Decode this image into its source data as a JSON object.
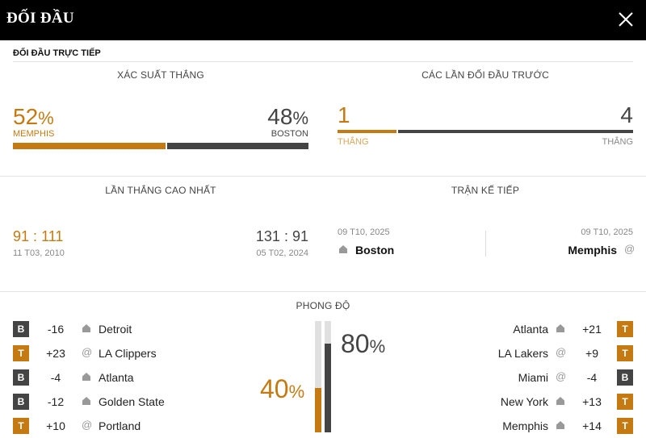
{
  "header": {
    "title": "ĐỐI ĐẦU",
    "close_icon": "close-icon"
  },
  "section": {
    "title": "ĐỐI ĐẦU TRỰC TIẾP"
  },
  "win_probability": {
    "heading": "XÁC SUẤT THẮNG",
    "left": {
      "value": "52",
      "pct": "%",
      "team": "MEMPHIS",
      "fraction": 0.52
    },
    "right": {
      "value": "48",
      "pct": "%",
      "team": "BOSTON",
      "fraction": 0.48
    }
  },
  "previous_meetings": {
    "heading": "CÁC LẦN ĐỐI ĐẦU TRƯỚC",
    "left": {
      "value": "1",
      "label": "THẮNG",
      "count": 1
    },
    "right": {
      "value": "4",
      "label": "THẮNG",
      "count": 4
    }
  },
  "biggest_win": {
    "heading": "LẦN THẮNG CAO NHẤT",
    "left": {
      "home": "91",
      "sep": ":",
      "away": "111",
      "date": "11 T03, 2010"
    },
    "right": {
      "home": "131",
      "sep": ":",
      "away": "91",
      "date": "05 T02, 2024"
    }
  },
  "next_match": {
    "heading": "TRẬN KẾ TIẾP",
    "left": {
      "date": "09 T10, 2025",
      "team": "Boston",
      "venue_icon": "home-icon"
    },
    "right": {
      "date": "09 T10, 2025",
      "team": "Memphis",
      "venue_icon": "at-icon"
    }
  },
  "form": {
    "heading": "PHONG ĐỘ",
    "left_pct": "40",
    "right_pct": "80",
    "pct_sign": "%",
    "left_fraction": 0.4,
    "right_fraction": 0.8,
    "left": [
      {
        "result": "B",
        "diff": "-16",
        "venue": "home",
        "team": "Detroit"
      },
      {
        "result": "T",
        "diff": "+23",
        "venue": "away",
        "team": "LA Clippers"
      },
      {
        "result": "B",
        "diff": "-4",
        "venue": "home",
        "team": "Atlanta"
      },
      {
        "result": "B",
        "diff": "-12",
        "venue": "home",
        "team": "Golden State"
      },
      {
        "result": "T",
        "diff": "+10",
        "venue": "away",
        "team": "Portland"
      }
    ],
    "right": [
      {
        "result": "T",
        "diff": "+21",
        "venue": "home",
        "team": "Atlanta"
      },
      {
        "result": "T",
        "diff": "+9",
        "venue": "away",
        "team": "LA Lakers"
      },
      {
        "result": "B",
        "diff": "-4",
        "venue": "away",
        "team": "Miami"
      },
      {
        "result": "T",
        "diff": "+13",
        "venue": "home",
        "team": "New York"
      },
      {
        "result": "T",
        "diff": "+14",
        "venue": "home",
        "team": "Memphis"
      }
    ]
  },
  "colors": {
    "orange": "#c47a10",
    "dark": "#444444",
    "header": "#000000"
  }
}
